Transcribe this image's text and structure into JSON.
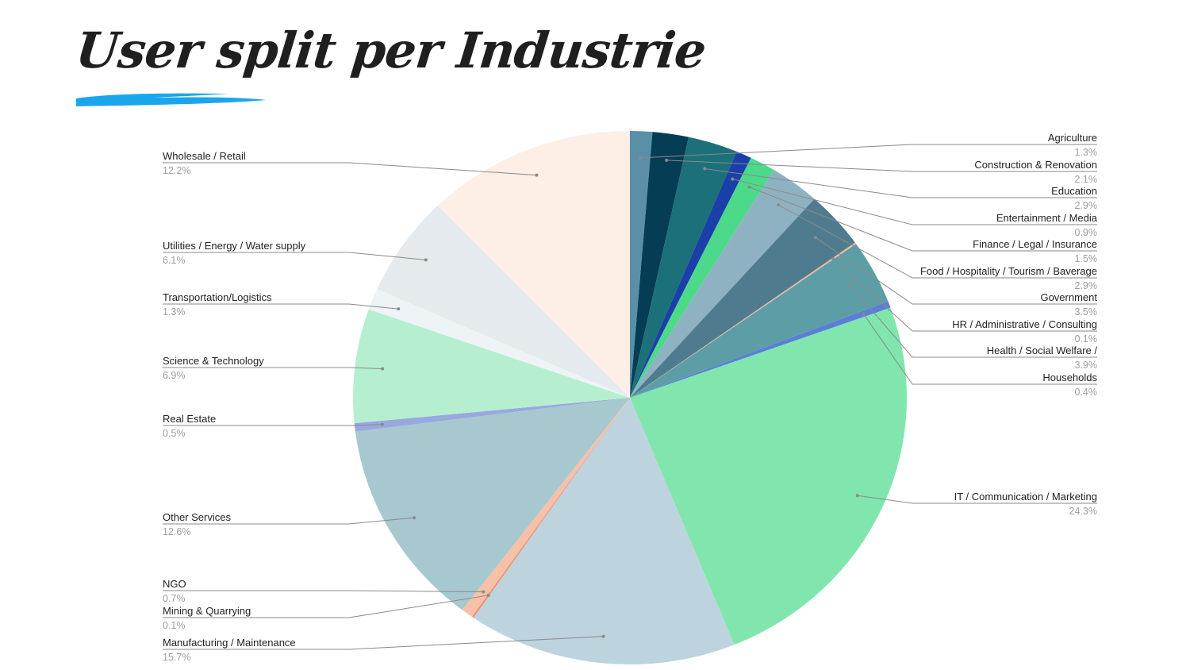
{
  "slide": {
    "title": "User split per Industrie",
    "underline_color": "#1aa6ec"
  },
  "chart_data": {
    "type": "pie",
    "title": "",
    "unit": "%",
    "start_angle_deg": 0,
    "direction": "clockwise",
    "slices": [
      {
        "label": "Agriculture",
        "value": 1.3,
        "display": "1.3%",
        "color": "#5b8fa8",
        "side": "right"
      },
      {
        "label": "Construction & Renovation",
        "value": 2.1,
        "display": "2.1%",
        "color": "#053d55",
        "side": "right"
      },
      {
        "label": "Education",
        "value": 2.9,
        "display": "2.9%",
        "color": "#1b7079",
        "side": "right"
      },
      {
        "label": "Entertainment / Media",
        "value": 0.9,
        "display": "0.9%",
        "color": "#1a3fa8",
        "side": "right"
      },
      {
        "label": "Finance / Legal / Insurance",
        "value": 1.5,
        "display": "1.5%",
        "color": "#4cd98a",
        "side": "right"
      },
      {
        "label": "Food / Hospitality / Tourism / Baverage",
        "value": 2.9,
        "display": "2.9%",
        "color": "#8fb2c2",
        "side": "right"
      },
      {
        "label": "Government",
        "value": 3.5,
        "display": "3.5%",
        "color": "#4e7c8e",
        "side": "right"
      },
      {
        "label": "HR / Administrative / Consulting",
        "value": 0.1,
        "display": "0.1%",
        "color": "#f4b7a0",
        "side": "right"
      },
      {
        "label": "Health / Social Welfare /",
        "value": 3.9,
        "display": "3.9%",
        "color": "#5d9ea6",
        "side": "right"
      },
      {
        "label": "Households",
        "value": 0.4,
        "display": "0.4%",
        "color": "#5b7fd6",
        "side": "right"
      },
      {
        "label": "IT / Communication / Marketing",
        "value": 24.3,
        "display": "24.3%",
        "color": "#80e6ad",
        "side": "right"
      },
      {
        "label": "Manufacturing / Maintenance",
        "value": 15.7,
        "display": "15.7%",
        "color": "#bdd3dd",
        "side": "left"
      },
      {
        "label": "Mining & Quarrying",
        "value": 0.1,
        "display": "0.1%",
        "color": "#f08a70",
        "side": "left"
      },
      {
        "label": "NGO",
        "value": 0.7,
        "display": "0.7%",
        "color": "#f7c1a8",
        "side": "left"
      },
      {
        "label": "Other Services",
        "value": 12.6,
        "display": "12.6%",
        "color": "#a7c8cf",
        "side": "left"
      },
      {
        "label": "Real Estate",
        "value": 0.5,
        "display": "0.5%",
        "color": "#9aa8e0",
        "side": "left"
      },
      {
        "label": "Science & Technology",
        "value": 6.9,
        "display": "6.9%",
        "color": "#b5efd0",
        "side": "left"
      },
      {
        "label": "Transportation/Logistics",
        "value": 1.3,
        "display": "1.3%",
        "color": "#eef3f6",
        "side": "left"
      },
      {
        "label": "Utilities / Energy / Water supply",
        "value": 6.1,
        "display": "6.1%",
        "color": "#e4eaed",
        "side": "left"
      },
      {
        "label": "Wholesale / Retail",
        "value": 12.2,
        "display": "12.2%",
        "color": "#fdeee6",
        "side": "left"
      }
    ]
  }
}
